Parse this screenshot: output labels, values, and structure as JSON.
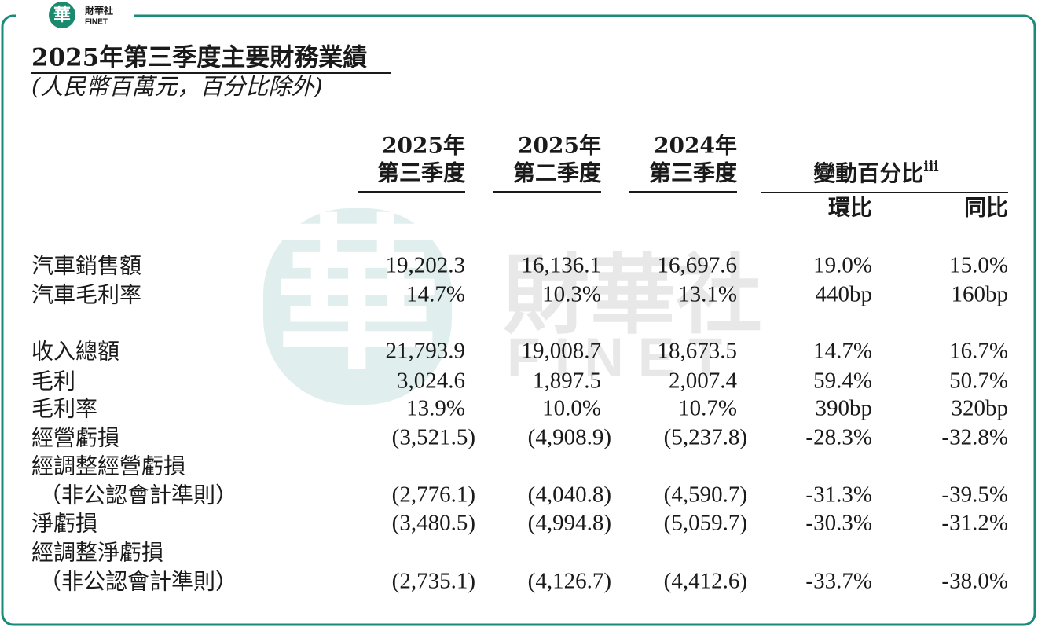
{
  "logo": {
    "mark": "華",
    "name": "財華社",
    "latin": "FINET"
  },
  "watermark": {
    "mark": "華",
    "name": "財華社",
    "latin": "FINET"
  },
  "header": {
    "title": "2025年第三季度主要財務業績",
    "subtitle": "(人民幣百萬元，百分比除外)"
  },
  "table": {
    "columns": [
      [
        "2025年",
        "第三季度"
      ],
      [
        "2025年",
        "第二季度"
      ],
      [
        "2024年",
        "第三季度"
      ]
    ],
    "change_header": {
      "label": "變動百分比",
      "note": "iii",
      "sub": [
        "環比",
        "同比"
      ]
    },
    "rows": [
      {
        "label": [
          "汽車銷售額"
        ],
        "values": [
          "19,202.3",
          "16,136.1",
          "16,697.6",
          "19.0%",
          "15.0%"
        ]
      },
      {
        "label": [
          "汽車毛利率"
        ],
        "values": [
          "14.7%",
          "10.3%",
          "13.1%",
          "440bp",
          "160bp"
        ]
      },
      {
        "label": [
          "收入總額"
        ],
        "values": [
          "21,793.9",
          "19,008.7",
          "18,673.5",
          "14.7%",
          "16.7%"
        ]
      },
      {
        "label": [
          "毛利"
        ],
        "values": [
          "3,024.6",
          "1,897.5",
          "2,007.4",
          "59.4%",
          "50.7%"
        ]
      },
      {
        "label": [
          "毛利率"
        ],
        "values": [
          "13.9%",
          "10.0%",
          "10.7%",
          "390bp",
          "320bp"
        ]
      },
      {
        "label": [
          "經營虧損"
        ],
        "values": [
          "(3,521.5)",
          "(4,908.9)",
          "(5,237.8)",
          "-28.3%",
          "-32.8%"
        ]
      },
      {
        "label": [
          "經調整經營虧損",
          "（非公認會計準則）"
        ],
        "values": [
          "(2,776.1)",
          "(4,040.8)",
          "(4,590.7)",
          "-31.3%",
          "-39.5%"
        ]
      },
      {
        "label": [
          "淨虧損"
        ],
        "values": [
          "(3,480.5)",
          "(4,994.8)",
          "(5,059.7)",
          "-30.3%",
          "-31.2%"
        ]
      },
      {
        "label": [
          "經調整淨虧損",
          "（非公認會計準則）"
        ],
        "values": [
          "(2,735.1)",
          "(4,126.7)",
          "(4,412.6)",
          "-33.7%",
          "-38.0%"
        ]
      }
    ]
  }
}
